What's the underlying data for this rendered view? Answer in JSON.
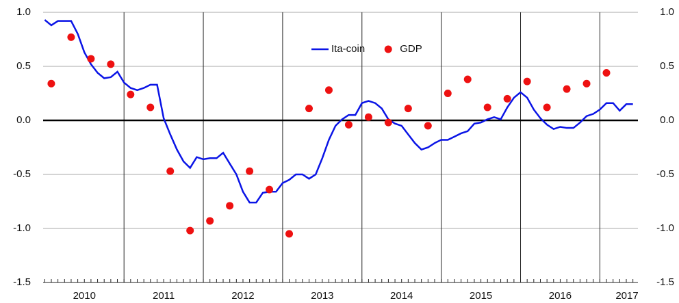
{
  "chart_data": {
    "type": "line-scatter",
    "xlim": [
      2009.98,
      2017.48
    ],
    "xticks": [
      {
        "value": 2010.5,
        "label": "2010"
      },
      {
        "value": 2011.5,
        "label": "2011"
      },
      {
        "value": 2012.5,
        "label": "2012"
      },
      {
        "value": 2013.5,
        "label": "2013"
      },
      {
        "value": 2014.5,
        "label": "2014"
      },
      {
        "value": 2015.5,
        "label": "2015"
      },
      {
        "value": 2016.5,
        "label": "2016"
      },
      {
        "value": 2017.5,
        "label": "2017"
      }
    ],
    "ylim": [
      -1.5,
      1.0
    ],
    "yticks": [
      {
        "value": -1.5,
        "label": "-1.5"
      },
      {
        "value": -1.0,
        "label": "-1.0"
      },
      {
        "value": -0.5,
        "label": "-0.5"
      },
      {
        "value": 0,
        "label": "0.0"
      },
      {
        "value": 0.5,
        "label": "0.5"
      },
      {
        "value": 1.0,
        "label": "1.0"
      }
    ],
    "y2lim": [
      -1.5,
      1.0
    ],
    "y2ticks": [
      {
        "value": -1.5,
        "label": "-1.5"
      },
      {
        "value": -1.0,
        "label": "-1.0"
      },
      {
        "value": -0.5,
        "label": "-0.5"
      },
      {
        "value": 0,
        "label": "0.0"
      },
      {
        "value": 0.5,
        "label": "0.5"
      },
      {
        "value": 1.0,
        "label": "1.0"
      }
    ],
    "grid": true,
    "legend": "top-center",
    "series": [
      {
        "name": "Ita-coin",
        "type": "line",
        "color": "#0a14e6",
        "x": [
          2010,
          2010.083,
          2010.167,
          2010.25,
          2010.333,
          2010.417,
          2010.5,
          2010.583,
          2010.667,
          2010.75,
          2010.833,
          2010.917,
          2011,
          2011.083,
          2011.167,
          2011.25,
          2011.333,
          2011.417,
          2011.5,
          2011.583,
          2011.667,
          2011.75,
          2011.833,
          2011.917,
          2012,
          2012.083,
          2012.167,
          2012.25,
          2012.333,
          2012.417,
          2012.5,
          2012.583,
          2012.667,
          2012.75,
          2012.833,
          2012.917,
          2013,
          2013.083,
          2013.167,
          2013.25,
          2013.333,
          2013.417,
          2013.5,
          2013.583,
          2013.667,
          2013.75,
          2013.833,
          2013.917,
          2014,
          2014.083,
          2014.167,
          2014.25,
          2014.333,
          2014.417,
          2014.5,
          2014.583,
          2014.667,
          2014.75,
          2014.833,
          2014.917,
          2015,
          2015.083,
          2015.167,
          2015.25,
          2015.333,
          2015.417,
          2015.5,
          2015.583,
          2015.667,
          2015.75,
          2015.833,
          2015.917,
          2016,
          2016.083,
          2016.167,
          2016.25,
          2016.333,
          2016.417,
          2016.5,
          2016.583,
          2016.667,
          2016.75,
          2016.833,
          2016.917,
          2017,
          2017.083,
          2017.167,
          2017.25,
          2017.333,
          2017.417
        ],
        "values": [
          0.93,
          0.88,
          0.92,
          0.92,
          0.92,
          0.8,
          0.63,
          0.52,
          0.44,
          0.39,
          0.4,
          0.45,
          0.35,
          0.3,
          0.28,
          0.3,
          0.33,
          0.33,
          0.02,
          -0.13,
          -0.27,
          -0.38,
          -0.44,
          -0.34,
          -0.36,
          -0.35,
          -0.35,
          -0.3,
          -0.4,
          -0.5,
          -0.66,
          -0.76,
          -0.76,
          -0.67,
          -0.66,
          -0.66,
          -0.58,
          -0.55,
          -0.5,
          -0.5,
          -0.54,
          -0.5,
          -0.35,
          -0.18,
          -0.05,
          0.01,
          0.05,
          0.05,
          0.16,
          0.18,
          0.16,
          0.11,
          0.01,
          -0.03,
          -0.05,
          -0.13,
          -0.21,
          -0.27,
          -0.25,
          -0.21,
          -0.18,
          -0.18,
          -0.15,
          -0.12,
          -0.1,
          -0.03,
          -0.02,
          0.01,
          0.03,
          0.01,
          0.12,
          0.21,
          0.26,
          0.21,
          0.1,
          0.02,
          -0.04,
          -0.08,
          -0.06,
          -0.07,
          -0.07,
          -0.02,
          0.04,
          0.06,
          0.1,
          0.16,
          0.16,
          0.09,
          0.15,
          0.15
        ]
      },
      {
        "name": "GDP",
        "type": "scatter",
        "color": "#ee1111",
        "x": [
          2010.083,
          2010.333,
          2010.583,
          2010.833,
          2011.083,
          2011.333,
          2011.583,
          2011.833,
          2012.083,
          2012.333,
          2012.583,
          2012.833,
          2013.083,
          2013.333,
          2013.583,
          2013.833,
          2014.083,
          2014.333,
          2014.583,
          2014.833,
          2015.083,
          2015.333,
          2015.583,
          2015.833,
          2016.083,
          2016.333,
          2016.583,
          2016.833,
          2017.083
        ],
        "values": [
          0.34,
          0.77,
          0.57,
          0.52,
          0.24,
          0.12,
          -0.47,
          -1.02,
          -0.93,
          -0.79,
          -0.47,
          -0.64,
          -1.05,
          0.11,
          0.28,
          -0.04,
          0.03,
          -0.02,
          0.11,
          -0.05,
          0.25,
          0.38,
          0.12,
          0.2,
          0.36,
          0.12,
          0.29,
          0.34,
          0.44
        ]
      }
    ]
  }
}
